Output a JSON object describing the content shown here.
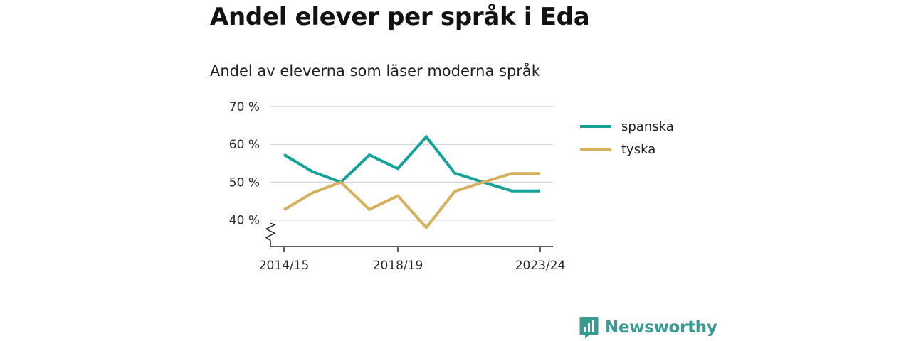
{
  "header": {
    "title": "Andel elever per språk i Eda",
    "subtitle": "Andel av eleverna som läser moderna språk"
  },
  "brand": {
    "name": "Newsworthy",
    "color": "#3a9a92"
  },
  "chart_data": {
    "type": "line",
    "title": "Andel elever per språk i Eda",
    "subtitle": "Andel av eleverna som läser moderna språk",
    "x": [
      "2014/15",
      "2015/16",
      "2016/17",
      "2017/18",
      "2018/19",
      "2019/20",
      "2020/21",
      "2021/22",
      "2022/23",
      "2023/24"
    ],
    "x_tick_labels": [
      "2014/15",
      "2018/19",
      "2023/24"
    ],
    "y_tick_values": [
      40,
      50,
      60,
      70
    ],
    "y_tick_labels": [
      "40 %",
      "50 %",
      "60 %",
      "70 %"
    ],
    "ylim": [
      33,
      72
    ],
    "y_axis_break": true,
    "grid": true,
    "legend_position": "right",
    "series": [
      {
        "name": "spanska",
        "color": "#14a39a",
        "values": [
          57.3,
          52.8,
          50.0,
          57.2,
          53.6,
          62.0,
          52.4,
          50.0,
          47.7,
          47.7
        ]
      },
      {
        "name": "tyska",
        "color": "#d8b05c",
        "values": [
          42.7,
          47.2,
          50.0,
          42.8,
          46.4,
          38.0,
          47.6,
          50.0,
          52.3,
          52.3
        ]
      }
    ]
  }
}
